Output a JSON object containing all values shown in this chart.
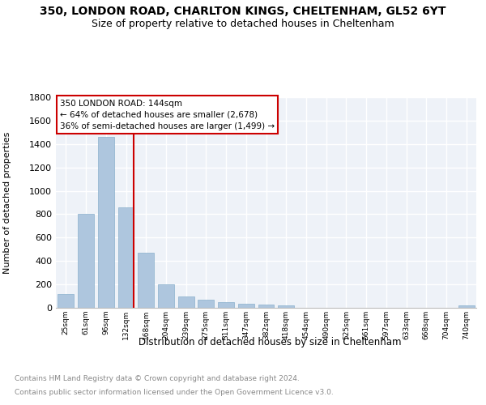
{
  "title": "350, LONDON ROAD, CHARLTON KINGS, CHELTENHAM, GL52 6YT",
  "subtitle": "Size of property relative to detached houses in Cheltenham",
  "xlabel": "Distribution of detached houses by size in Cheltenham",
  "ylabel": "Number of detached properties",
  "categories": [
    "25sqm",
    "61sqm",
    "96sqm",
    "132sqm",
    "168sqm",
    "204sqm",
    "239sqm",
    "275sqm",
    "311sqm",
    "347sqm",
    "382sqm",
    "418sqm",
    "454sqm",
    "490sqm",
    "525sqm",
    "561sqm",
    "597sqm",
    "633sqm",
    "668sqm",
    "704sqm",
    "740sqm"
  ],
  "values": [
    120,
    800,
    1460,
    860,
    470,
    200,
    100,
    70,
    48,
    35,
    25,
    20,
    0,
    0,
    0,
    0,
    0,
    0,
    0,
    0,
    18
  ],
  "bar_color": "#aec6de",
  "bar_edge_color": "#8ab0cc",
  "vline_color": "#cc0000",
  "annotation_title": "350 LONDON ROAD: 144sqm",
  "annotation_line1": "← 64% of detached houses are smaller (2,678)",
  "annotation_line2": "36% of semi-detached houses are larger (1,499) →",
  "annotation_box_color": "#cc0000",
  "footer1": "Contains HM Land Registry data © Crown copyright and database right 2024.",
  "footer2": "Contains public sector information licensed under the Open Government Licence v3.0.",
  "ylim": [
    0,
    1800
  ],
  "yticks": [
    0,
    200,
    400,
    600,
    800,
    1000,
    1200,
    1400,
    1600,
    1800
  ],
  "background_color": "#eef2f8",
  "grid_color": "#ffffff",
  "title_fontsize": 10,
  "subtitle_fontsize": 9
}
